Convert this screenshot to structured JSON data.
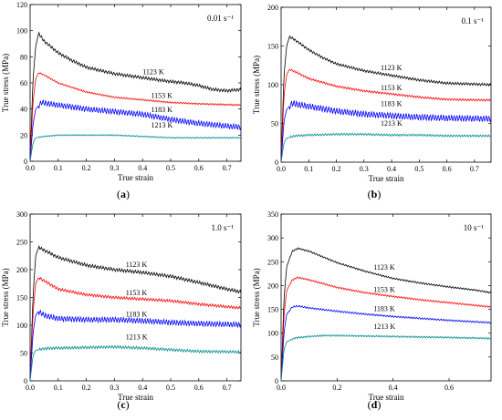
{
  "figure": {
    "panels": [
      {
        "label": "(a)",
        "rate": "0.01 s⁻¹",
        "strain_rate": 0.01,
        "xlabel": "True strain",
        "ylabel": "True stress (MPa)"
      },
      {
        "label": "(b)",
        "rate": "0.1 s⁻¹",
        "strain_rate": 0.1,
        "xlabel": "True strain",
        "ylabel": "True stress (MPa)"
      },
      {
        "label": "(c)",
        "rate": "1.0 s⁻¹",
        "strain_rate": 1.0,
        "xlabel": "True strain",
        "ylabel": "True stress (MPa)"
      },
      {
        "label": "(d)",
        "rate": "10 s⁻¹",
        "strain_rate": 10,
        "xlabel": "True strain",
        "ylabel": "True stress (MPa)"
      }
    ]
  },
  "chart_data": [
    {
      "type": "line",
      "xlabel": "True strain",
      "ylabel": "True stress (MPa)",
      "xlim": [
        0,
        0.75
      ],
      "ylim": [
        0,
        120
      ],
      "xticks": [
        0.0,
        0.1,
        0.2,
        0.3,
        0.4,
        0.5,
        0.6,
        0.7
      ],
      "xtick_labels": [
        "0.0",
        "0.1",
        "0.2",
        "0.3",
        "0.4",
        "0.5",
        "0.6",
        "0.7"
      ],
      "yticks": [
        0,
        20,
        40,
        60,
        80,
        100,
        120
      ],
      "ytick_labels": [
        "0",
        "20",
        "40",
        "60",
        "80",
        "100",
        "120"
      ],
      "annotation": "0.01 s⁻¹",
      "grid": false,
      "series": [
        {
          "name": "1123 K",
          "color": "#000000",
          "osc": 1.2,
          "x": [
            0,
            0.01,
            0.02,
            0.03,
            0.05,
            0.1,
            0.15,
            0.2,
            0.3,
            0.4,
            0.5,
            0.55,
            0.6,
            0.65,
            0.7,
            0.75
          ],
          "y": [
            0,
            62,
            88,
            98,
            92,
            83,
            77,
            72,
            67,
            64,
            61,
            60,
            58,
            55,
            54,
            55
          ]
        },
        {
          "name": "1153 K",
          "color": "#ff0000",
          "osc": 0.6,
          "x": [
            0,
            0.01,
            0.02,
            0.03,
            0.05,
            0.1,
            0.2,
            0.3,
            0.4,
            0.5,
            0.6,
            0.75
          ],
          "y": [
            0,
            45,
            63,
            68,
            66,
            60,
            53,
            49,
            47,
            45,
            44,
            43
          ]
        },
        {
          "name": "1183 K",
          "color": "#0000ff",
          "osc": 2.2,
          "x": [
            0,
            0.01,
            0.02,
            0.04,
            0.1,
            0.2,
            0.3,
            0.4,
            0.5,
            0.6,
            0.7,
            0.75
          ],
          "y": [
            0,
            28,
            40,
            45,
            43,
            40,
            38,
            36,
            32,
            29,
            27,
            26
          ]
        },
        {
          "name": "1213 K",
          "color": "#008b8b",
          "osc": 0.5,
          "x": [
            0,
            0.01,
            0.02,
            0.05,
            0.1,
            0.2,
            0.3,
            0.4,
            0.5,
            0.6,
            0.75
          ],
          "y": [
            0,
            14,
            18,
            19,
            20,
            20,
            20,
            19,
            18,
            18,
            18
          ]
        }
      ]
    },
    {
      "type": "line",
      "xlabel": "True strain",
      "ylabel": "True stress (MPa)",
      "xlim": [
        0,
        0.76
      ],
      "ylim": [
        0,
        200
      ],
      "xticks": [
        0.0,
        0.1,
        0.2,
        0.3,
        0.4,
        0.5,
        0.6,
        0.7
      ],
      "xtick_labels": [
        "0.0",
        "0.1",
        "0.2",
        "0.3",
        "0.4",
        "0.5",
        "0.6",
        "0.7"
      ],
      "yticks": [
        0,
        50,
        100,
        150,
        200
      ],
      "ytick_labels": [
        "0",
        "50",
        "100",
        "150",
        "200"
      ],
      "annotation": "0.1 s⁻¹",
      "grid": false,
      "series": [
        {
          "name": "1123 K",
          "color": "#000000",
          "osc": 1.0,
          "x": [
            0,
            0.01,
            0.02,
            0.03,
            0.05,
            0.1,
            0.15,
            0.2,
            0.3,
            0.4,
            0.5,
            0.6,
            0.76
          ],
          "y": [
            0,
            110,
            150,
            162,
            158,
            145,
            135,
            127,
            118,
            112,
            106,
            102,
            100
          ]
        },
        {
          "name": "1153 K",
          "color": "#ff0000",
          "osc": 0.8,
          "x": [
            0,
            0.01,
            0.02,
            0.03,
            0.05,
            0.1,
            0.2,
            0.3,
            0.4,
            0.5,
            0.6,
            0.76
          ],
          "y": [
            0,
            85,
            113,
            120,
            117,
            108,
            98,
            92,
            88,
            84,
            81,
            80
          ]
        },
        {
          "name": "1183 K",
          "color": "#0000ff",
          "osc": 2.5,
          "x": [
            0,
            0.01,
            0.02,
            0.04,
            0.1,
            0.2,
            0.3,
            0.4,
            0.5,
            0.6,
            0.76
          ],
          "y": [
            0,
            52,
            68,
            76,
            72,
            66,
            62,
            60,
            58,
            57,
            56
          ]
        },
        {
          "name": "1213 K",
          "color": "#008b8b",
          "osc": 0.8,
          "x": [
            0,
            0.01,
            0.02,
            0.05,
            0.1,
            0.2,
            0.3,
            0.4,
            0.5,
            0.6,
            0.76
          ],
          "y": [
            0,
            25,
            31,
            34,
            35,
            36,
            36,
            35,
            35,
            34,
            34
          ]
        }
      ]
    },
    {
      "type": "line",
      "xlabel": "True strain",
      "ylabel": "True stress (MPa)",
      "xlim": [
        0,
        0.75
      ],
      "ylim": [
        0,
        300
      ],
      "xticks": [
        0.0,
        0.1,
        0.2,
        0.3,
        0.4,
        0.5,
        0.6,
        0.7
      ],
      "xtick_labels": [
        "0.0",
        "0.1",
        "0.2",
        "0.3",
        "0.4",
        "0.5",
        "0.6",
        "0.7"
      ],
      "yticks": [
        0,
        50,
        100,
        150,
        200,
        250,
        300
      ],
      "ytick_labels": [
        "0",
        "50",
        "100",
        "150",
        "200",
        "250",
        "300"
      ],
      "annotation": "1.0 s⁻¹",
      "grid": false,
      "series": [
        {
          "name": "1123 K",
          "color": "#000000",
          "osc": 1.2,
          "x": [
            0,
            0.01,
            0.02,
            0.03,
            0.05,
            0.1,
            0.2,
            0.3,
            0.4,
            0.5,
            0.6,
            0.7,
            0.75
          ],
          "y": [
            0,
            150,
            225,
            240,
            235,
            222,
            208,
            200,
            195,
            188,
            177,
            165,
            160
          ]
        },
        {
          "name": "1153 K",
          "color": "#ff0000",
          "osc": 1.0,
          "x": [
            0,
            0.01,
            0.02,
            0.03,
            0.05,
            0.1,
            0.2,
            0.3,
            0.4,
            0.5,
            0.6,
            0.75
          ],
          "y": [
            0,
            120,
            175,
            186,
            180,
            165,
            155,
            150,
            147,
            144,
            138,
            131
          ]
        },
        {
          "name": "1183 K",
          "color": "#0000ff",
          "osc": 2.0,
          "x": [
            0,
            0.01,
            0.02,
            0.03,
            0.05,
            0.1,
            0.2,
            0.3,
            0.4,
            0.5,
            0.6,
            0.75
          ],
          "y": [
            0,
            85,
            118,
            125,
            118,
            112,
            110,
            110,
            108,
            105,
            103,
            101
          ]
        },
        {
          "name": "1213 K",
          "color": "#008b8b",
          "osc": 1.0,
          "x": [
            0,
            0.01,
            0.02,
            0.05,
            0.1,
            0.2,
            0.3,
            0.4,
            0.5,
            0.6,
            0.75
          ],
          "y": [
            0,
            45,
            55,
            58,
            59,
            60,
            61,
            59,
            56,
            53,
            52
          ]
        }
      ]
    },
    {
      "type": "line",
      "xlabel": "True strain",
      "ylabel": "True stress (MPa)",
      "xlim": [
        0,
        0.75
      ],
      "ylim": [
        0,
        350
      ],
      "xticks": [
        0.0,
        0.2,
        0.4,
        0.6
      ],
      "xtick_labels": [
        "0.0",
        "0.2",
        "0.4",
        "0.6"
      ],
      "yticks": [
        0,
        50,
        100,
        150,
        200,
        250,
        300,
        350
      ],
      "ytick_labels": [
        "0",
        "50",
        "100",
        "150",
        "200",
        "250",
        "300",
        "350"
      ],
      "annotation": "10 s⁻¹",
      "grid": false,
      "series": [
        {
          "name": "1123 K",
          "color": "#000000",
          "osc": 0.6,
          "x": [
            0,
            0.01,
            0.02,
            0.04,
            0.06,
            0.1,
            0.2,
            0.3,
            0.4,
            0.5,
            0.6,
            0.7,
            0.75
          ],
          "y": [
            0,
            170,
            240,
            272,
            278,
            272,
            248,
            230,
            215,
            205,
            197,
            190,
            185
          ]
        },
        {
          "name": "1153 K",
          "color": "#ff0000",
          "osc": 0.6,
          "x": [
            0,
            0.01,
            0.02,
            0.04,
            0.06,
            0.1,
            0.2,
            0.3,
            0.4,
            0.5,
            0.6,
            0.75
          ],
          "y": [
            0,
            135,
            190,
            212,
            217,
            212,
            196,
            185,
            177,
            170,
            164,
            155
          ]
        },
        {
          "name": "1183 K",
          "color": "#0000ff",
          "osc": 0.6,
          "x": [
            0,
            0.01,
            0.02,
            0.04,
            0.06,
            0.1,
            0.2,
            0.3,
            0.4,
            0.5,
            0.6,
            0.75
          ],
          "y": [
            0,
            100,
            140,
            155,
            157,
            153,
            146,
            140,
            135,
            131,
            127,
            122
          ]
        },
        {
          "name": "1213 K",
          "color": "#008b8b",
          "osc": 0.6,
          "x": [
            0,
            0.01,
            0.02,
            0.05,
            0.1,
            0.15,
            0.2,
            0.3,
            0.4,
            0.5,
            0.6,
            0.75
          ],
          "y": [
            0,
            65,
            82,
            90,
            93,
            95,
            95,
            94,
            93,
            92,
            91,
            89
          ]
        }
      ]
    }
  ]
}
